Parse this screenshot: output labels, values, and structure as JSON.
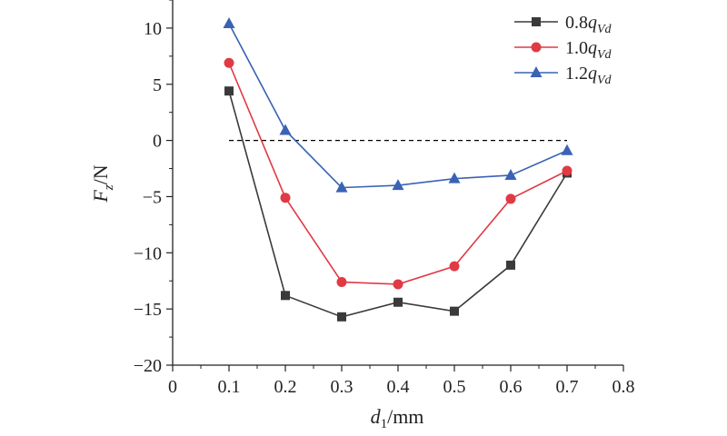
{
  "chart_data": {
    "type": "line",
    "title": "",
    "xlabel_main": "d",
    "xlabel_sub": "1",
    "xlabel_unit": "/mm",
    "ylabel_main": "F",
    "ylabel_sub": "z",
    "ylabel_unit": "/N",
    "xlim": [
      0,
      0.8
    ],
    "ylim": [
      -20,
      12.5
    ],
    "xticks": [
      0,
      0.1,
      0.2,
      0.3,
      0.4,
      0.5,
      0.6,
      0.7,
      0.8
    ],
    "xtick_labels": [
      "0",
      "0.1",
      "0.2",
      "0.3",
      "0.4",
      "0.5",
      "0.6",
      "0.7",
      "0.8"
    ],
    "yticks": [
      -20,
      -15,
      -10,
      -5,
      0,
      5,
      10
    ],
    "ytick_labels": [
      "−20",
      "−15",
      "−10",
      "−5",
      "0",
      "5",
      "10"
    ],
    "grid": false,
    "legend_position": "top-right",
    "reference_line": {
      "y": 0,
      "x_from": 0.1,
      "x_to": 0.7,
      "style": "dashed",
      "color": "#000000"
    },
    "x": [
      0.1,
      0.2,
      0.3,
      0.4,
      0.5,
      0.6,
      0.7
    ],
    "series": [
      {
        "name_coef": "0.8",
        "name_var": "q",
        "name_sub": "Vd",
        "marker": "square",
        "color": "#3a3a3a",
        "values": [
          4.4,
          -13.8,
          -15.7,
          -14.4,
          -15.2,
          -11.1,
          -2.9
        ]
      },
      {
        "name_coef": "1.0",
        "name_var": "q",
        "name_sub": "Vd",
        "marker": "circle",
        "color": "#e03a45",
        "values": [
          6.9,
          -5.1,
          -12.6,
          -12.8,
          -11.2,
          -5.2,
          -2.7
        ]
      },
      {
        "name_coef": "1.2",
        "name_var": "q",
        "name_sub": "Vd",
        "marker": "triangle",
        "color": "#3a62b5",
        "values": [
          10.4,
          0.9,
          -4.2,
          -4.0,
          -3.4,
          -3.1,
          -0.9
        ]
      }
    ]
  }
}
